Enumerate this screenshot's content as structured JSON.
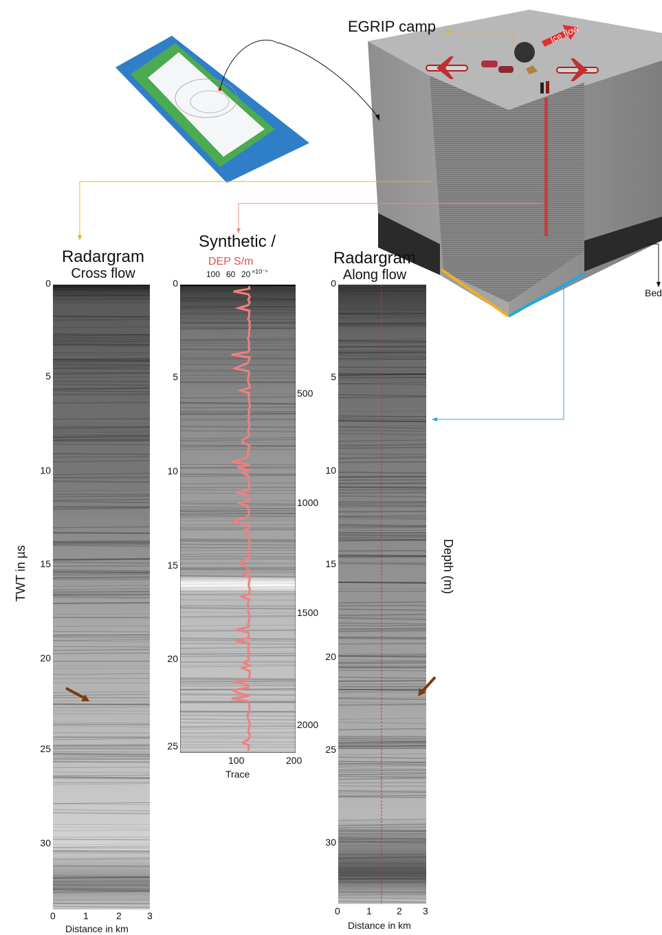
{
  "camp_label": "EGRIP camp",
  "ice_flow_label": "Ice flow",
  "bed_label": "Bed",
  "left_panel": {
    "title": "Radargram",
    "subtitle": "Cross flow",
    "y_ticks": [
      "0",
      "5",
      "10",
      "15",
      "20",
      "25",
      "30"
    ],
    "x_ticks": [
      "0",
      "1",
      "2",
      "3"
    ],
    "x_label": "Distance in km"
  },
  "middle_panel": {
    "title": "Synthetic /",
    "subtitle": "DEP S/m",
    "top_ticks": [
      "100",
      "60",
      "20"
    ],
    "top_scale": "×10⁻⁶",
    "y_ticks": [
      "0",
      "5",
      "10",
      "15",
      "20",
      "25"
    ],
    "depth_ticks": [
      "500",
      "1000",
      "1500",
      "2000"
    ],
    "x_ticks": [
      "100",
      "200"
    ],
    "x_label": "Trace"
  },
  "right_panel": {
    "title": "Radargram",
    "subtitle": "Along flow",
    "y_ticks": [
      "0",
      "5",
      "10",
      "15",
      "20",
      "25",
      "30"
    ],
    "x_ticks": [
      "0",
      "1",
      "2",
      "3"
    ],
    "x_label": "Distance in km"
  },
  "y_axis_label": "TWT in µs",
  "depth_axis_label": "Depth (m)",
  "colors": {
    "dep_curve": "#f08080",
    "arrow": "#7a3b10",
    "orange_line": "#f0b020",
    "cyan_line": "#20a8e0",
    "red_line": "#e89080",
    "ice_flow_arrow": "#e03030"
  }
}
